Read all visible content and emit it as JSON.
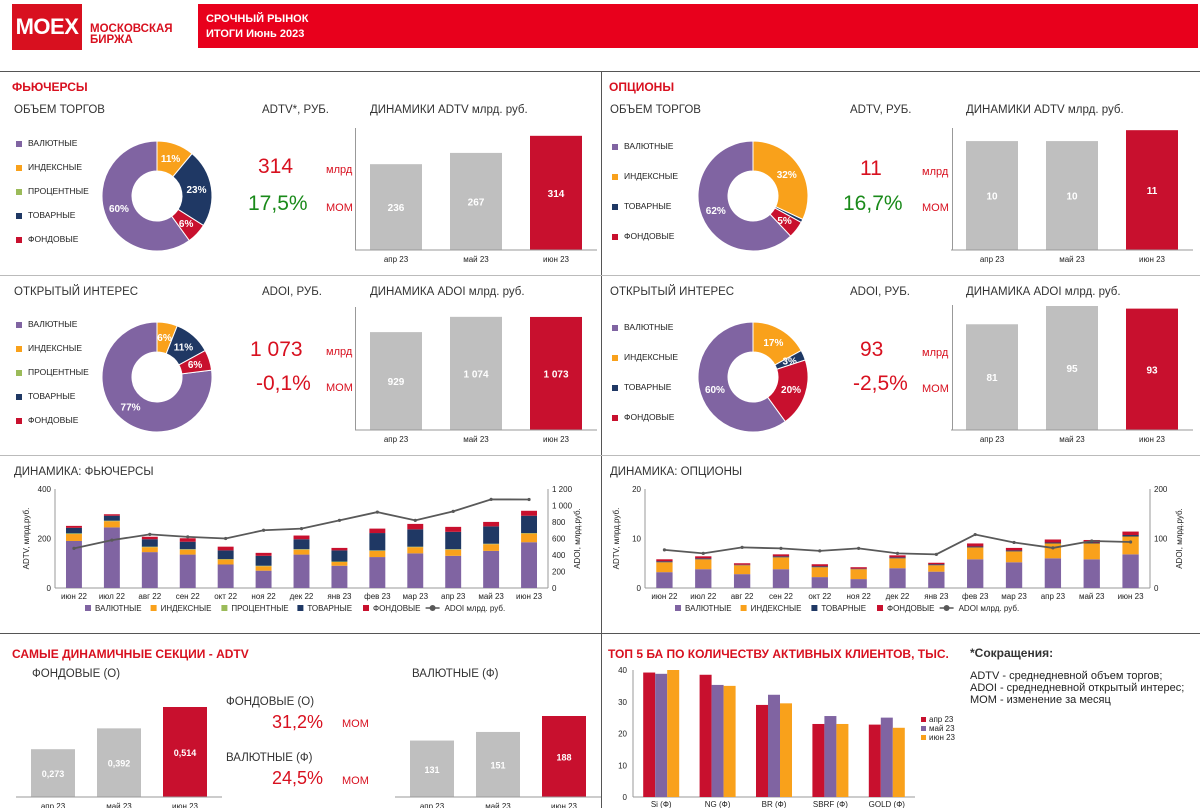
{
  "header": {
    "logo": "MOEX",
    "logo_sub1": "МОСКОВСКАЯ",
    "logo_sub2": "БИРЖА",
    "title1": "СРОЧНЫЙ РЫНОК",
    "title2": "ИТОГИ  Июнь 2023"
  },
  "colors": {
    "purple": "#8064a2",
    "orange": "#f9a11b",
    "green": "#9bbb59",
    "navy": "#1f3864",
    "red": "#c8102e",
    "grey": "#bfbfbf",
    "line": "#595959"
  },
  "futures": {
    "title": "ФЬЮЧЕРСЫ",
    "volume_title": "ОБЪЕМ ТОРГОВ",
    "adtv_label": "ADTV*, РУБ.",
    "adtv_value": "314",
    "adtv_unit": "млрд",
    "adtv_change": "17,5%",
    "adtv_change_unit": "МОМ",
    "dyn_title": "ДИНАМИКИ ADTV млрд. руб.",
    "oi_title": "ОТКРЫТЫЙ ИНТЕРЕС",
    "adoi_label": "ADOI, РУБ.",
    "adoi_value": "1 073",
    "adoi_unit": "млрд",
    "adoi_change": "-0,1%",
    "adoi_change_unit": "МОМ",
    "dyn_oi_title": "ДИНАМИКА ADOI млрд. руб.",
    "legend": [
      "ВАЛЮТНЫЕ",
      "ИНДЕКСНЫЕ",
      "ПРОЦЕНТНЫЕ",
      "ТОВАРНЫЕ",
      "ФОНДОВЫЕ"
    ],
    "dynamics_title": "ДИНАМИКА: ФЬЮЧЕРСЫ"
  },
  "options": {
    "title": "ОПЦИОНЫ",
    "volume_title": "ОБЪЕМ ТОРГОВ",
    "adtv_label": "ADTV, РУБ.",
    "adtv_value": "11",
    "adtv_unit": "млрд",
    "adtv_change": "16,7%",
    "adtv_change_unit": "МОМ",
    "dyn_title": "ДИНАМИКИ ADTV млрд. руб.",
    "oi_title": "ОТКРЫТЫЙ ИНТЕРЕС",
    "adoi_label": "ADOI, РУБ.",
    "adoi_value": "93",
    "adoi_unit": "млрд",
    "adoi_change": "-2,5%",
    "adoi_change_unit": "МОМ",
    "dyn_oi_title": "ДИНАМИКА ADOI млрд. руб.",
    "legend": [
      "ВАЛЮТНЫЕ",
      "ИНДЕКСНЫЕ",
      "ТОВАРНЫЕ",
      "ФОНДОВЫЕ"
    ],
    "dynamics_title": "ДИНАМИКА: ОПЦИОНЫ"
  },
  "sections": {
    "title": "САМЫЕ ДИНАМИЧНЫЕ СЕКЦИИ - ADTV",
    "left_title": "ФОНДОВЫЕ  (О)",
    "right_title": "ВАЛЮТНЫЕ  (Ф)",
    "mid1_label": "ФОНДОВЫЕ  (О)",
    "mid1_value": "31,2%",
    "mid1_unit": "МОМ",
    "mid2_label": "ВАЛЮТНЫЕ  (Ф)",
    "mid2_value": "24,5%",
    "mid2_unit": "МОМ"
  },
  "top5": {
    "title": "ТОП 5 БА ПО КОЛИЧЕСТВУ АКТИВНЫХ КЛИЕНТОВ, ТЫС."
  },
  "notes": {
    "title": "*Сокращения:",
    "l1": "ADTV - среднедневной объем торгов;",
    "l2": "ADOI - среднедневной открытый интерес;",
    "l3": "МОМ - изменение за месяц"
  },
  "chart_data": [
    {
      "id": "fut-vol-donut",
      "type": "pie",
      "title": "ОБЪЕМ ТОРГОВ",
      "labels": [
        "ВАЛЮТНЫЕ",
        "ИНДЕКСНЫЕ",
        "ПРОЦЕНТНЫЕ",
        "ТОВАРНЫЕ",
        "ФОНДОВЫЕ"
      ],
      "values": [
        60,
        11,
        0,
        23,
        6
      ],
      "data_labels": [
        "60%",
        "11%",
        "",
        "23%",
        "6%"
      ]
    },
    {
      "id": "fut-adtv-bar",
      "type": "bar",
      "title": "ДИНАМИКИ ADTV млрд. руб.",
      "categories": [
        "апр 23",
        "май 23",
        "июн 23"
      ],
      "values": [
        236,
        267,
        314
      ],
      "data_labels": [
        "236",
        "267",
        "314"
      ],
      "ylim": [
        0,
        330
      ]
    },
    {
      "id": "fut-oi-donut",
      "type": "pie",
      "title": "ОТКРЫТЫЙ ИНТЕРЕС",
      "labels": [
        "ВАЛЮТНЫЕ",
        "ИНДЕКСНЫЕ",
        "ПРОЦЕНТНЫЕ",
        "ТОВАРНЫЕ",
        "ФОНДОВЫЕ"
      ],
      "values": [
        77,
        6,
        0,
        11,
        6
      ],
      "data_labels": [
        "77%",
        "6%",
        "",
        "11%",
        "6%"
      ]
    },
    {
      "id": "fut-adoi-bar",
      "type": "bar",
      "title": "ДИНАМИКА ADOI млрд. руб.",
      "categories": [
        "апр 23",
        "май 23",
        "июн 23"
      ],
      "values": [
        929,
        1074,
        1073
      ],
      "data_labels": [
        "929",
        "1 074",
        "1 073"
      ],
      "ylim": [
        0,
        1120
      ]
    },
    {
      "id": "opt-vol-donut",
      "type": "pie",
      "title": "ОБЪЕМ ТОРГОВ",
      "labels": [
        "ВАЛЮТНЫЕ",
        "ИНДЕКСНЫЕ",
        "ТОВАРНЫЕ",
        "ФОНДОВЫЕ"
      ],
      "values": [
        62,
        32,
        1,
        5
      ],
      "data_labels": [
        "62%",
        "32%",
        "",
        "5%"
      ]
    },
    {
      "id": "opt-adtv-bar",
      "type": "bar",
      "title": "ДИНАМИКИ ADTV млрд. руб.",
      "categories": [
        "апр 23",
        "май 23",
        "июн 23"
      ],
      "values": [
        10,
        10,
        11
      ],
      "data_labels": [
        "10",
        "10",
        "11"
      ],
      "ylim": [
        0,
        11.2
      ]
    },
    {
      "id": "opt-oi-donut",
      "type": "pie",
      "title": "ОТКРЫТЫЙ ИНТЕРЕС",
      "labels": [
        "ВАЛЮТНЫЕ",
        "ИНДЕКСНЫЕ",
        "ТОВАРНЫЕ",
        "ФОНДОВЫЕ"
      ],
      "values": [
        60,
        17,
        3,
        20
      ],
      "data_labels": [
        "60%",
        "17%",
        "3%",
        "20%"
      ]
    },
    {
      "id": "opt-adoi-bar",
      "type": "bar",
      "title": "ДИНАМИКА ADOI млрд. руб.",
      "categories": [
        "апр 23",
        "май 23",
        "июн 23"
      ],
      "values": [
        81,
        95,
        93
      ],
      "data_labels": [
        "81",
        "95",
        "93"
      ],
      "ylim": [
        0,
        95
      ]
    },
    {
      "id": "fut-dyn",
      "type": "bar",
      "stacked": true,
      "title": "ДИНАМИКА: ФЬЮЧЕРСЫ",
      "ylabel": "ADTV, млрд.руб.",
      "y2label": "ADOI, млрд.руб.",
      "categories": [
        "июн 22",
        "июл 22",
        "авг 22",
        "сен 22",
        "окт 22",
        "ноя 22",
        "дек 22",
        "янв 23",
        "фев 23",
        "мар 23",
        "апр 23",
        "май 23",
        "июн 23"
      ],
      "ylim": [
        0,
        400
      ],
      "yticks": [
        "0",
        "200",
        "400"
      ],
      "y2lim": [
        0,
        1200
      ],
      "y2ticks": [
        "0",
        "200",
        "400",
        "600",
        "800",
        "1 000",
        "1 200"
      ],
      "series": [
        {
          "name": "ВАЛЮТНЫЕ",
          "values": [
            190,
            245,
            145,
            135,
            95,
            70,
            135,
            90,
            125,
            140,
            130,
            150,
            185
          ]
        },
        {
          "name": "ИНДЕКСНЫЕ",
          "values": [
            28,
            25,
            20,
            20,
            20,
            18,
            20,
            15,
            25,
            25,
            25,
            27,
            35
          ]
        },
        {
          "name": "ПРОЦЕНТНЫЕ",
          "values": [
            3,
            2,
            2,
            2,
            2,
            2,
            2,
            2,
            2,
            2,
            2,
            2,
            2
          ]
        },
        {
          "name": "ТОВАРНЫЕ",
          "values": [
            22,
            20,
            30,
            30,
            35,
            40,
            40,
            45,
            70,
            70,
            70,
            70,
            70
          ]
        },
        {
          "name": "ФОНДОВЫЕ",
          "values": [
            8,
            6,
            10,
            14,
            15,
            12,
            15,
            10,
            18,
            22,
            20,
            18,
            20
          ]
        }
      ],
      "line": {
        "name": "ADOI млрд. руб.",
        "values": [
          480,
          580,
          650,
          620,
          600,
          700,
          720,
          820,
          920,
          820,
          929,
          1074,
          1073
        ]
      }
    },
    {
      "id": "opt-dyn",
      "type": "bar",
      "stacked": true,
      "title": "ДИНАМИКА: ОПЦИОНЫ",
      "ylabel": "ADTV, млрд.руб.",
      "y2label": "ADOI, млрд.руб.",
      "categories": [
        "июн 22",
        "июл 22",
        "авг 22",
        "сен 22",
        "окт 22",
        "ноя 22",
        "дек 22",
        "янв 23",
        "фев 23",
        "мар 23",
        "апр 23",
        "май 23",
        "июн 23"
      ],
      "ylim": [
        0,
        20
      ],
      "yticks": [
        "0",
        "10",
        "20"
      ],
      "y2lim": [
        0,
        200
      ],
      "y2ticks": [
        "0",
        "100",
        "200"
      ],
      "series": [
        {
          "name": "ВАЛЮТНЫЕ",
          "values": [
            3.2,
            3.8,
            2.8,
            3.8,
            2.2,
            1.8,
            4.0,
            3.3,
            5.8,
            5.2,
            6.0,
            5.8,
            6.8
          ]
        },
        {
          "name": "ИНДЕКСНЫЕ",
          "values": [
            2.0,
            2.0,
            1.8,
            2.4,
            2.0,
            2.0,
            2.0,
            1.3,
            2.4,
            2.2,
            3.0,
            3.2,
            3.6
          ]
        },
        {
          "name": "ТОВАРНЫЕ",
          "values": [
            0.2,
            0.2,
            0.1,
            0.2,
            0.2,
            0.1,
            0.2,
            0.2,
            0.2,
            0.2,
            0.2,
            0.2,
            0.3
          ]
        },
        {
          "name": "ФОНДОВЫЕ",
          "values": [
            0.4,
            0.4,
            0.3,
            0.4,
            0.4,
            0.3,
            0.4,
            0.3,
            0.6,
            0.5,
            0.6,
            0.5,
            0.7
          ]
        }
      ],
      "line": {
        "name": "ADOI млрд. руб.",
        "values": [
          77,
          70,
          82,
          80,
          75,
          80,
          70,
          68,
          108,
          92,
          81,
          95,
          93
        ]
      }
    },
    {
      "id": "sec-fond",
      "type": "bar",
      "title": "ФОНДОВЫЕ  (О)",
      "categories": [
        "апр 23",
        "май 23",
        "июн 23"
      ],
      "values": [
        0.273,
        0.392,
        0.514
      ],
      "data_labels": [
        "0,273",
        "0,392",
        "0,514"
      ],
      "ylim": [
        0,
        0.514
      ]
    },
    {
      "id": "sec-val",
      "type": "bar",
      "title": "ВАЛЮТНЫЕ  (Ф)",
      "categories": [
        "апр 23",
        "май 23",
        "июн 23"
      ],
      "values": [
        131,
        151,
        188
      ],
      "data_labels": [
        "131",
        "151",
        "188"
      ],
      "ylim": [
        0,
        188
      ]
    },
    {
      "id": "top5",
      "type": "bar",
      "title": "ТОП 5 БА ПО КОЛИЧЕСТВУ АКТИВНЫХ КЛИЕНТОВ, ТЫС.",
      "categories": [
        "Si (Ф)",
        "NG (Ф)",
        "BR (Ф)",
        "SBRF (Ф)",
        "GOLD (Ф)"
      ],
      "ylim": [
        0,
        40
      ],
      "yticks": [
        "0",
        "10",
        "20",
        "30",
        "40"
      ],
      "series": [
        {
          "name": "апр 23",
          "values": [
            39.2,
            38.5,
            29,
            23,
            22.8
          ]
        },
        {
          "name": "май 23",
          "values": [
            38.8,
            35.3,
            32.2,
            25.5,
            25
          ]
        },
        {
          "name": "июн 23",
          "values": [
            40,
            35,
            29.5,
            23,
            21.8
          ]
        }
      ]
    }
  ]
}
